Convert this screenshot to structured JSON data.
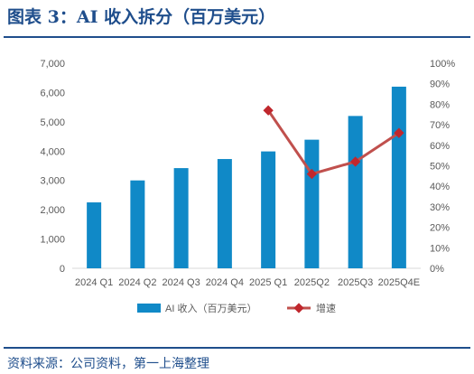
{
  "title": "图表 3：AI 收入拆分（百万美元）",
  "source": "资料来源：公司资料，第一上海整理",
  "colors": {
    "bar": "#1089c7",
    "line": "#c0504d",
    "marker": "#c0272d",
    "title": "#1f4e8c",
    "axis": "#595959",
    "grid": "#d9d9d9"
  },
  "chart_data": {
    "type": "bar",
    "categories": [
      "2024 Q1",
      "2024 Q2",
      "2024 Q3",
      "2024 Q4",
      "2025 Q1",
      "2025Q2",
      "2025Q3",
      "2025Q4E"
    ],
    "series": [
      {
        "name": "AI 收入（百万美元）",
        "type": "bar",
        "axis": "left",
        "values": [
          2250,
          3000,
          3420,
          3730,
          3990,
          4390,
          5200,
          6200
        ]
      },
      {
        "name": "增速",
        "type": "line",
        "axis": "right",
        "values": [
          null,
          null,
          null,
          null,
          77,
          46,
          52,
          66
        ]
      }
    ],
    "y_left": {
      "min": 0,
      "max": 7000,
      "step": 1000,
      "ticks": [
        "0",
        "1,000",
        "2,000",
        "3,000",
        "4,000",
        "5,000",
        "6,000",
        "7,000"
      ]
    },
    "y_right": {
      "min": 0,
      "max": 100,
      "step": 10,
      "ticks": [
        "0%",
        "10%",
        "20%",
        "30%",
        "40%",
        "50%",
        "60%",
        "70%",
        "80%",
        "90%",
        "100%"
      ]
    },
    "legend": {
      "position": "bottom",
      "items": [
        "AI 收入（百万美元）",
        "增速"
      ]
    },
    "grid": false
  }
}
